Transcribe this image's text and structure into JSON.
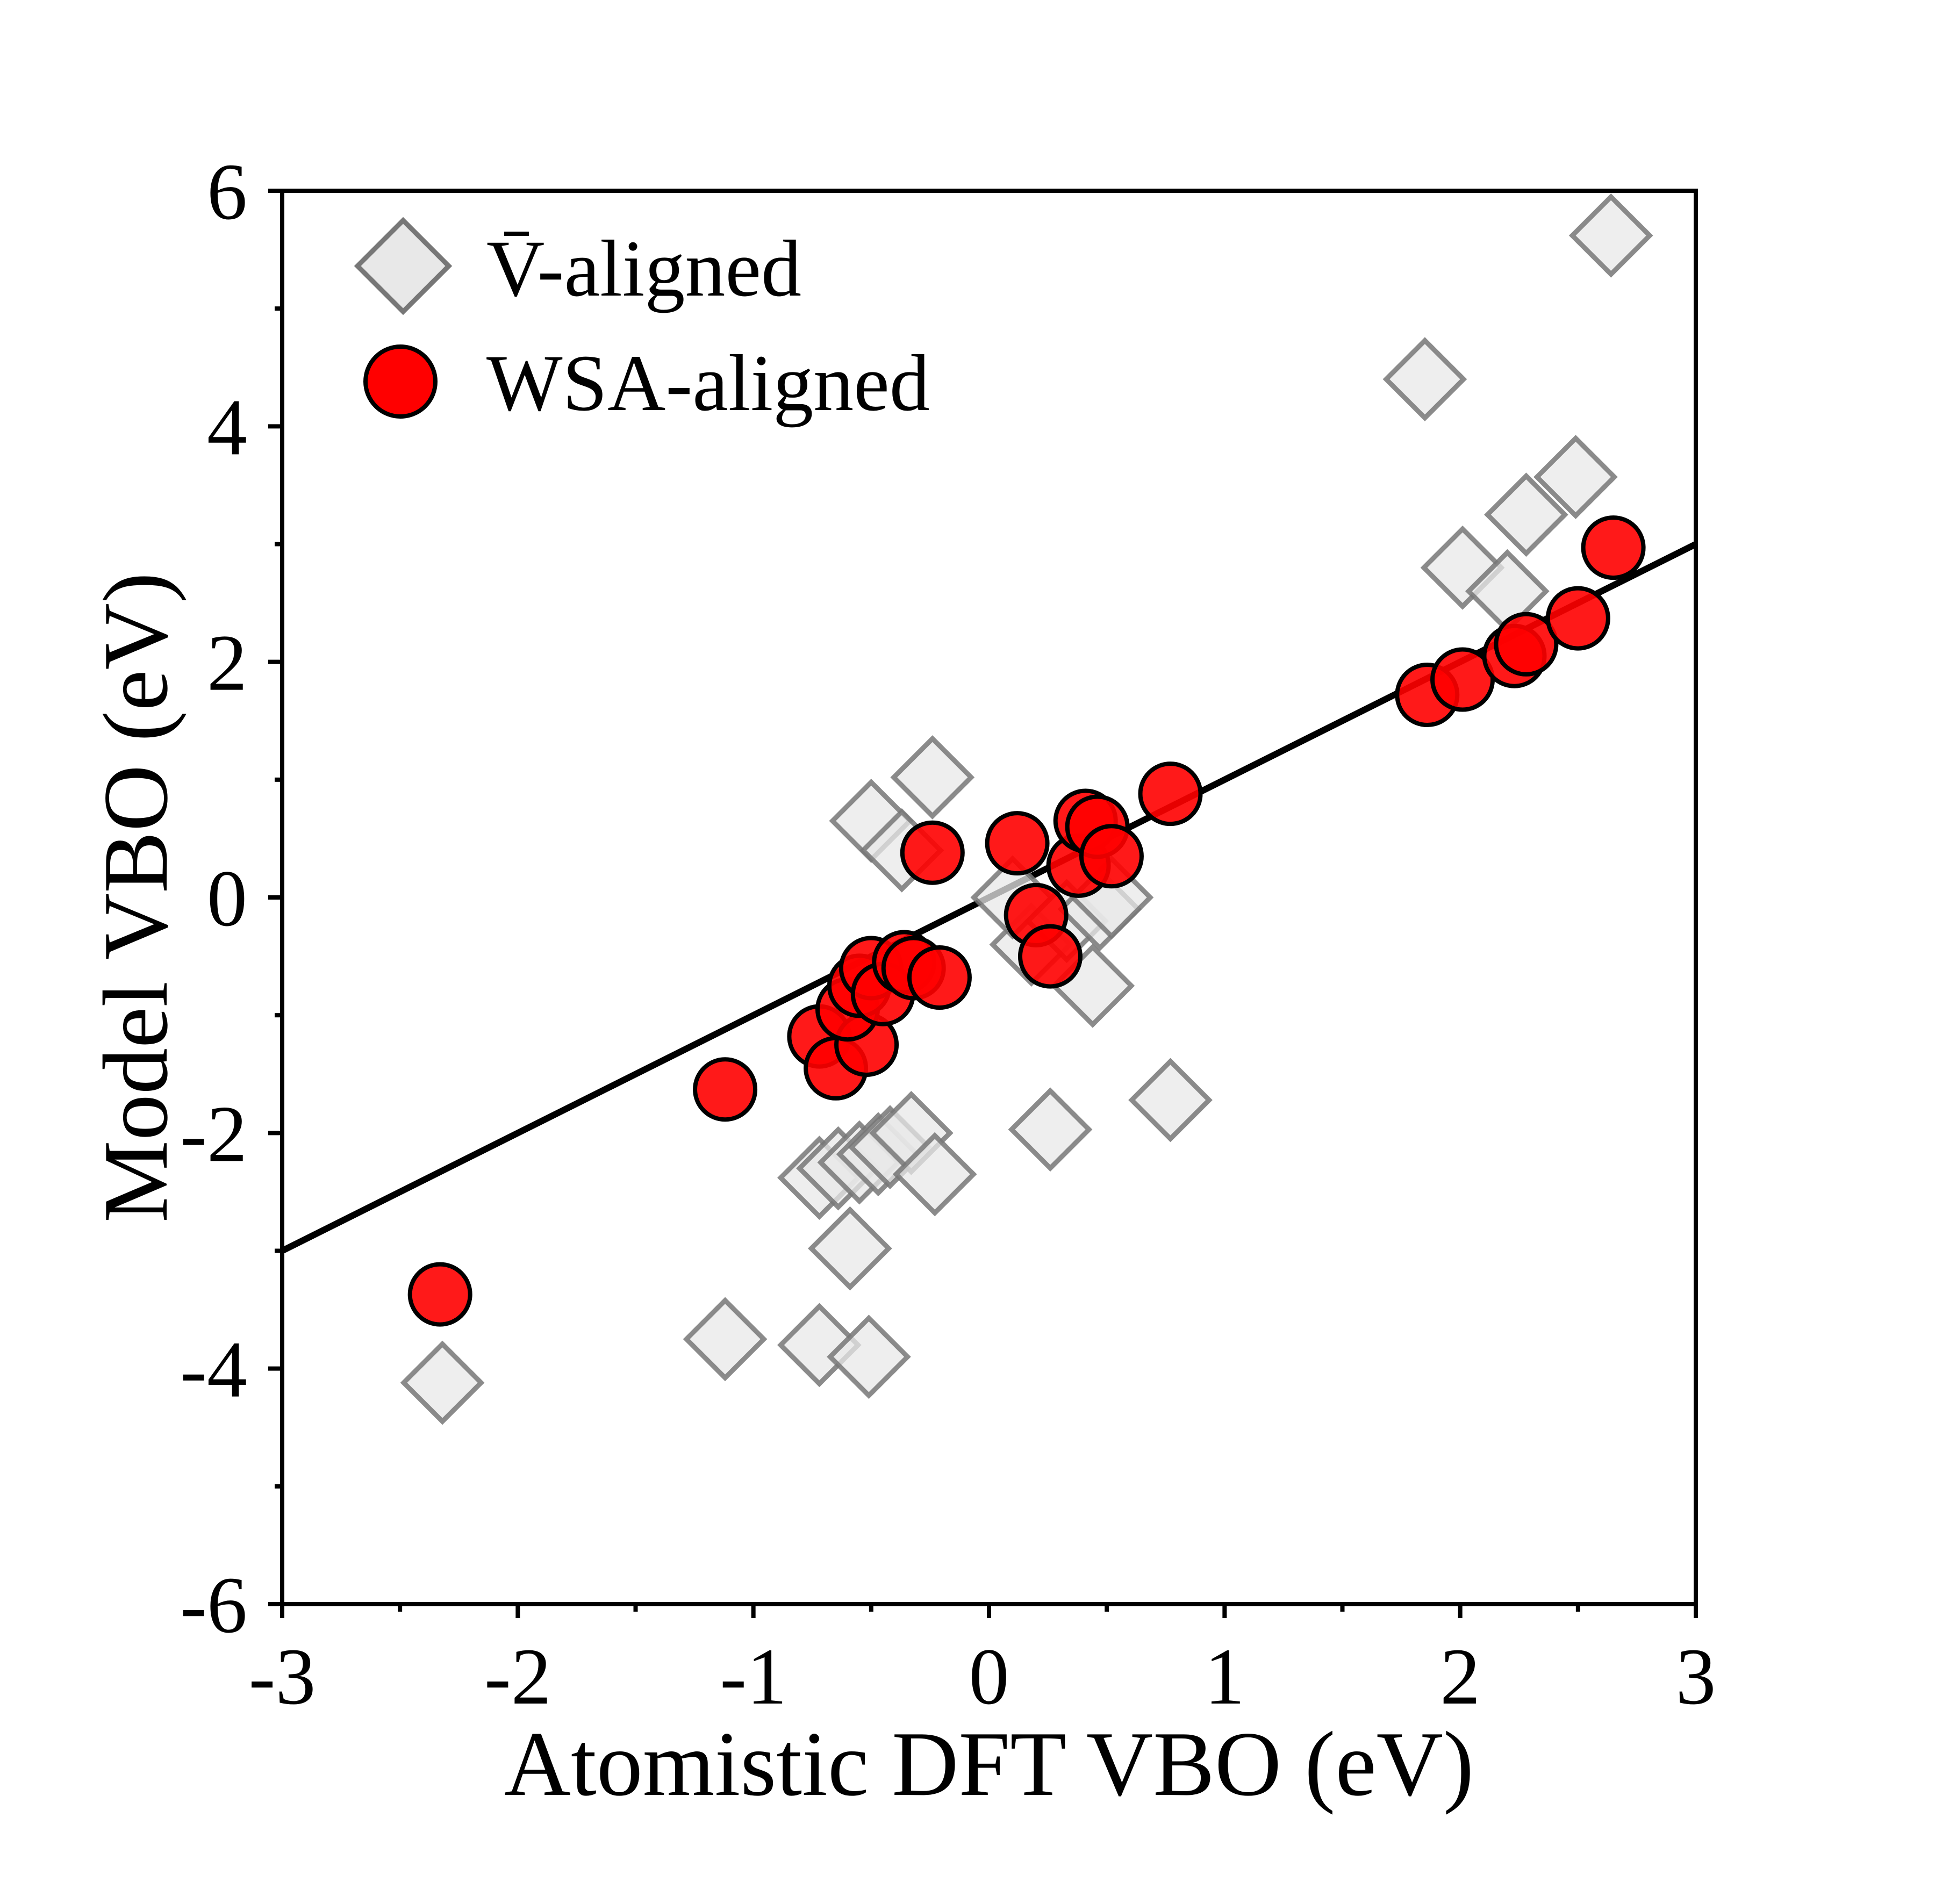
{
  "chart_data": {
    "type": "scatter",
    "title": "",
    "xlabel": "Atomistic DFT VBO (eV)",
    "ylabel": "Model VBO (eV)",
    "xlim": [
      -3,
      3
    ],
    "ylim": [
      -6,
      6
    ],
    "x_ticks": [
      -3,
      -2,
      -1,
      0,
      1,
      2,
      3
    ],
    "x_tick_labels": [
      "-3",
      "-2",
      "-1",
      "0",
      "1",
      "2",
      "3"
    ],
    "y_ticks": [
      -6,
      -4,
      -2,
      0,
      2,
      4,
      6
    ],
    "y_tick_labels": [
      "-6",
      "-4",
      "-2",
      "0",
      "2",
      "4",
      "6"
    ],
    "grid": false,
    "legend_position": "top-left",
    "fit_line": {
      "name": "linear fit",
      "x": [
        -3,
        3
      ],
      "y": [
        -3,
        3
      ],
      "color": "#000000"
    },
    "series": [
      {
        "name": "V̄-aligned",
        "marker": "diamond",
        "fill": "#e8e8e8",
        "stroke": "#777777",
        "points": [
          {
            "x": -2.32,
            "y": -4.12
          },
          {
            "x": -1.12,
            "y": -3.75
          },
          {
            "x": -0.72,
            "y": -3.8
          },
          {
            "x": -0.51,
            "y": -3.9
          },
          {
            "x": -0.59,
            "y": -2.98
          },
          {
            "x": -0.72,
            "y": -2.38
          },
          {
            "x": -0.64,
            "y": -2.3
          },
          {
            "x": -0.55,
            "y": -2.25
          },
          {
            "x": -0.47,
            "y": -2.18
          },
          {
            "x": -0.42,
            "y": -2.12
          },
          {
            "x": -0.33,
            "y": -2.0
          },
          {
            "x": -0.23,
            "y": -2.35
          },
          {
            "x": 0.26,
            "y": -1.97
          },
          {
            "x": 0.77,
            "y": -1.72
          },
          {
            "x": 0.44,
            "y": -0.75
          },
          {
            "x": 0.18,
            "y": -0.4
          },
          {
            "x": 0.1,
            "y": 0.0
          },
          {
            "x": 0.33,
            "y": -0.2
          },
          {
            "x": 0.47,
            "y": -0.1
          },
          {
            "x": 0.52,
            "y": 0.0
          },
          {
            "x": -0.5,
            "y": 0.65
          },
          {
            "x": -0.37,
            "y": 0.4
          },
          {
            "x": -0.24,
            "y": 1.02
          },
          {
            "x": 2.01,
            "y": 2.8
          },
          {
            "x": 2.2,
            "y": 2.6
          },
          {
            "x": 2.28,
            "y": 3.25
          },
          {
            "x": 2.49,
            "y": 3.57
          },
          {
            "x": 1.85,
            "y": 4.4
          },
          {
            "x": 2.64,
            "y": 5.62
          }
        ]
      },
      {
        "name": "WSA-aligned",
        "marker": "circle",
        "fill": "#ff0000",
        "stroke": "#000000",
        "points": [
          {
            "x": -2.33,
            "y": -3.37
          },
          {
            "x": -1.12,
            "y": -1.63
          },
          {
            "x": -0.72,
            "y": -1.18
          },
          {
            "x": -0.65,
            "y": -1.45
          },
          {
            "x": -0.52,
            "y": -1.25
          },
          {
            "x": -0.6,
            "y": -0.95
          },
          {
            "x": -0.55,
            "y": -0.75
          },
          {
            "x": -0.5,
            "y": -0.6
          },
          {
            "x": -0.45,
            "y": -0.82
          },
          {
            "x": -0.36,
            "y": -0.55
          },
          {
            "x": -0.32,
            "y": -0.6
          },
          {
            "x": -0.21,
            "y": -0.68
          },
          {
            "x": -0.24,
            "y": 0.38
          },
          {
            "x": 0.12,
            "y": 0.46
          },
          {
            "x": 0.2,
            "y": -0.15
          },
          {
            "x": 0.26,
            "y": -0.5
          },
          {
            "x": 0.38,
            "y": 0.27
          },
          {
            "x": 0.41,
            "y": 0.65
          },
          {
            "x": 0.46,
            "y": 0.6
          },
          {
            "x": 0.52,
            "y": 0.35
          },
          {
            "x": 0.77,
            "y": 0.88
          },
          {
            "x": 1.86,
            "y": 1.72
          },
          {
            "x": 2.01,
            "y": 1.85
          },
          {
            "x": 2.23,
            "y": 2.05
          },
          {
            "x": 2.28,
            "y": 2.15
          },
          {
            "x": 2.5,
            "y": 2.37
          },
          {
            "x": 2.65,
            "y": 2.97
          }
        ]
      }
    ]
  }
}
